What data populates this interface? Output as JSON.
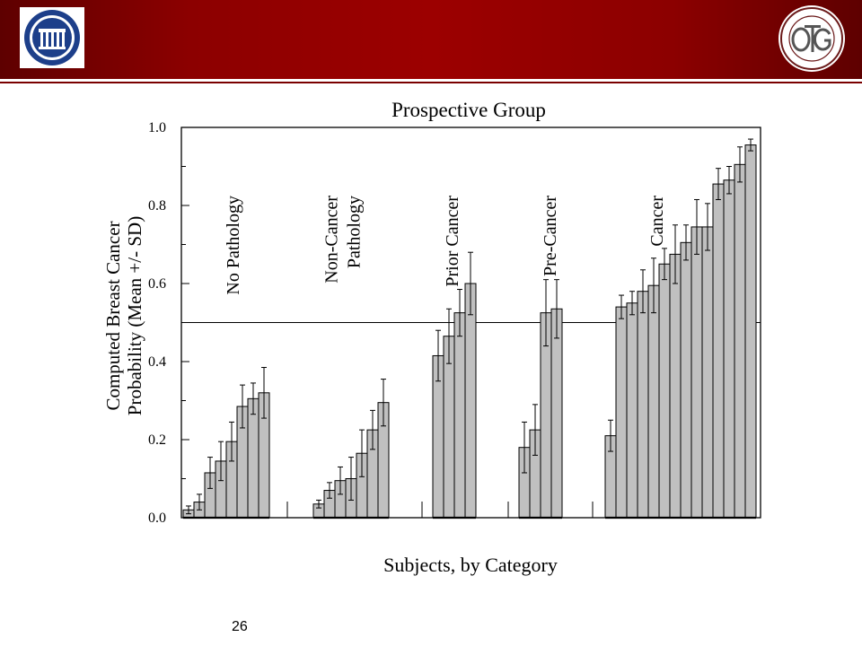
{
  "slide": {
    "page_number": "26"
  },
  "chart_data": {
    "type": "bar",
    "title": "Prospective Group",
    "xlabel": "Subjects, by Category",
    "ylabel_line1": "Computed Breast Cancer",
    "ylabel_line2": "Probability (Mean +/- SD)",
    "ylim": [
      0,
      1
    ],
    "y_ticks": [
      "0.0",
      "0.2",
      "0.4",
      "0.6",
      "0.8",
      "1.0"
    ],
    "threshold": 0.5,
    "grid": false,
    "bar_color": "#c0c0c0",
    "groups": [
      {
        "label_lines": [
          "No Pathology"
        ],
        "values": [
          0.02,
          0.04,
          0.115,
          0.145,
          0.195,
          0.285,
          0.305,
          0.32
        ],
        "errors": [
          0.01,
          0.02,
          0.04,
          0.05,
          0.05,
          0.055,
          0.04,
          0.065
        ]
      },
      {
        "label_lines": [
          "Non-Cancer",
          "Pathology"
        ],
        "values": [
          0.035,
          0.07,
          0.095,
          0.1,
          0.165,
          0.225,
          0.295
        ],
        "errors": [
          0.01,
          0.02,
          0.035,
          0.055,
          0.06,
          0.05,
          0.06
        ]
      },
      {
        "label_lines": [
          "Prior Cancer"
        ],
        "values": [
          0.415,
          0.465,
          0.525,
          0.6
        ],
        "errors": [
          0.065,
          0.07,
          0.06,
          0.08
        ]
      },
      {
        "label_lines": [
          "Pre-Cancer"
        ],
        "values": [
          0.18,
          0.225,
          0.525,
          0.535
        ],
        "errors": [
          0.065,
          0.065,
          0.085,
          0.075
        ]
      },
      {
        "label_lines": [
          "Cancer"
        ],
        "values": [
          0.21,
          0.54,
          0.55,
          0.58,
          0.595,
          0.65,
          0.675,
          0.705,
          0.745,
          0.745,
          0.855,
          0.865,
          0.905,
          0.955
        ],
        "errors": [
          0.04,
          0.03,
          0.03,
          0.055,
          0.07,
          0.04,
          0.075,
          0.045,
          0.07,
          0.06,
          0.04,
          0.035,
          0.045,
          0.015
        ]
      }
    ]
  }
}
